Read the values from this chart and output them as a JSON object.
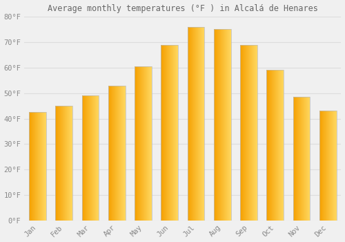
{
  "title": "Average monthly temperatures (°F ) in Alcalá de Henares",
  "months": [
    "Jan",
    "Feb",
    "Mar",
    "Apr",
    "May",
    "Jun",
    "Jul",
    "Aug",
    "Sep",
    "Oct",
    "Nov",
    "Dec"
  ],
  "values": [
    42.5,
    45.0,
    49.0,
    53.0,
    60.5,
    69.0,
    76.0,
    75.0,
    69.0,
    59.0,
    48.5,
    43.0
  ],
  "bar_color_left": "#FFB300",
  "bar_color_right": "#FFD966",
  "bar_edge_color": "#BBBBBB",
  "background_color": "#F0F0F0",
  "grid_color": "#DDDDDD",
  "tick_label_color": "#888888",
  "title_color": "#666666",
  "ylim": [
    0,
    80
  ],
  "yticks": [
    0,
    10,
    20,
    30,
    40,
    50,
    60,
    70,
    80
  ],
  "ytick_labels": [
    "0°F",
    "10°F",
    "20°F",
    "30°F",
    "40°F",
    "50°F",
    "60°F",
    "70°F",
    "80°F"
  ]
}
